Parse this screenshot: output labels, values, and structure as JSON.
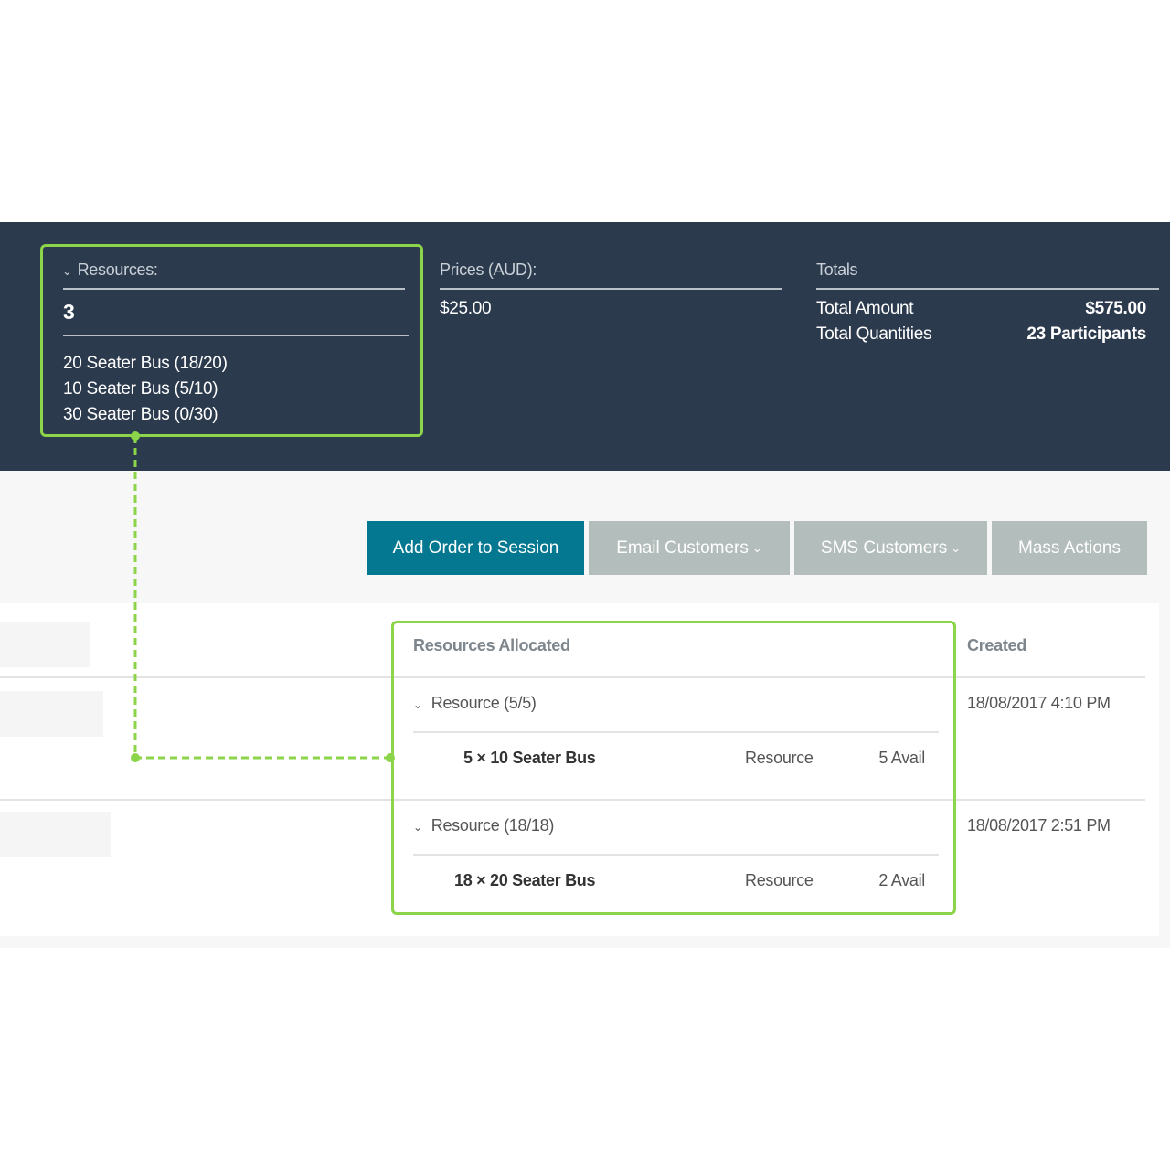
{
  "summary": {
    "resources": {
      "label": "Resources:",
      "count": "3",
      "items": [
        "20 Seater Bus (18/20)",
        "10 Seater Bus (5/10)",
        "30 Seater Bus (0/30)"
      ]
    },
    "prices": {
      "label": "Prices (AUD):",
      "value": "$25.00"
    },
    "totals": {
      "label": "Totals",
      "amount_label": "Total Amount",
      "amount_value": "$575.00",
      "quantities_label": "Total Quantities",
      "quantities_value": "23 Participants"
    }
  },
  "toolbar": {
    "add_order": "Add Order to Session",
    "email_customers": "Email Customers",
    "sms_customers": "SMS Customers",
    "mass_actions": "Mass Actions"
  },
  "table": {
    "headers": {
      "resources_allocated": "Resources Allocated",
      "created": "Created"
    },
    "rows": [
      {
        "resource_group": "Resource (5/5)",
        "allocation": "5 × 10 Seater Bus",
        "type": "Resource",
        "avail": "5 Avail",
        "created": "18/08/2017 4:10 PM"
      },
      {
        "resource_group": "Resource (18/18)",
        "allocation": "18 × 20 Seater Bus",
        "type": "Resource",
        "avail": "2 Avail",
        "created": "18/08/2017 2:51 PM"
      }
    ]
  },
  "colors": {
    "band": "#2c3a4d",
    "highlight": "#8cd44a",
    "primary_button": "#047890",
    "secondary_button": "#b3bdbb"
  }
}
